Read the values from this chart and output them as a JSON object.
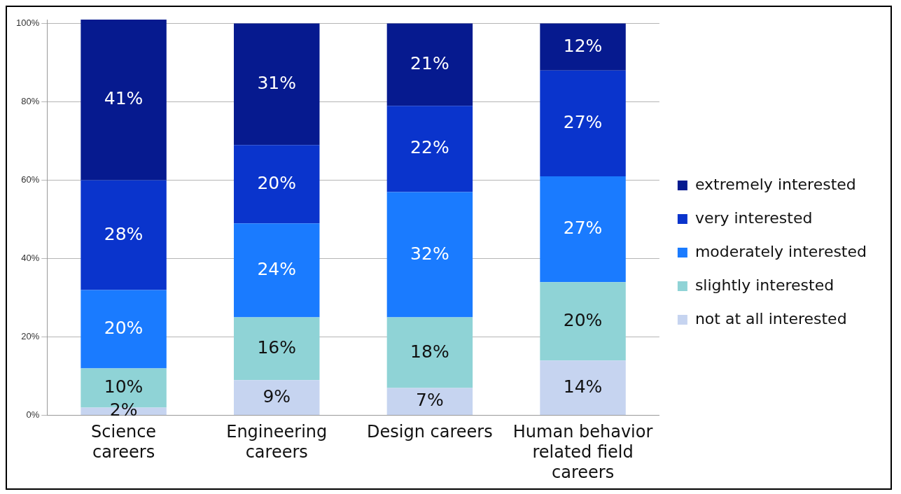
{
  "chart_data": {
    "type": "bar",
    "stacked": true,
    "categories": [
      "Science careers",
      "Engineering careers",
      "Design careers",
      "Human behavior related field careers"
    ],
    "series": [
      {
        "name": "not at all interested",
        "color": "#c6d4f0",
        "values": [
          2,
          9,
          7,
          14
        ]
      },
      {
        "name": "slightly interested",
        "color": "#8fd3d6",
        "values": [
          10,
          16,
          18,
          20
        ]
      },
      {
        "name": "moderately interested",
        "color": "#1a7bff",
        "values": [
          20,
          24,
          32,
          27
        ]
      },
      {
        "name": "very interested",
        "color": "#0a34cc",
        "values": [
          28,
          20,
          22,
          27
        ]
      },
      {
        "name": "extremely interested",
        "color": "#061a8f",
        "values": [
          41,
          31,
          21,
          12
        ]
      }
    ],
    "ylim": [
      0,
      101
    ],
    "yticks": [
      {
        "value": 0,
        "label": "0%"
      },
      {
        "value": 20,
        "label": "20%"
      },
      {
        "value": 40,
        "label": "40%"
      },
      {
        "value": 60,
        "label": "60%"
      },
      {
        "value": 80,
        "label": "80%"
      },
      {
        "value": 100,
        "label": "100%"
      }
    ],
    "grid": "y",
    "legend": "right",
    "value_labels": [
      [
        "2%",
        "9%",
        "7%",
        "14%"
      ],
      [
        "10%",
        "16%",
        "18%",
        "20%"
      ],
      [
        "20%",
        "24%",
        "32%",
        "27%"
      ],
      [
        "28%",
        "20%",
        "22%",
        "27%"
      ],
      [
        "41%",
        "31%",
        "21%",
        "12%"
      ]
    ]
  }
}
